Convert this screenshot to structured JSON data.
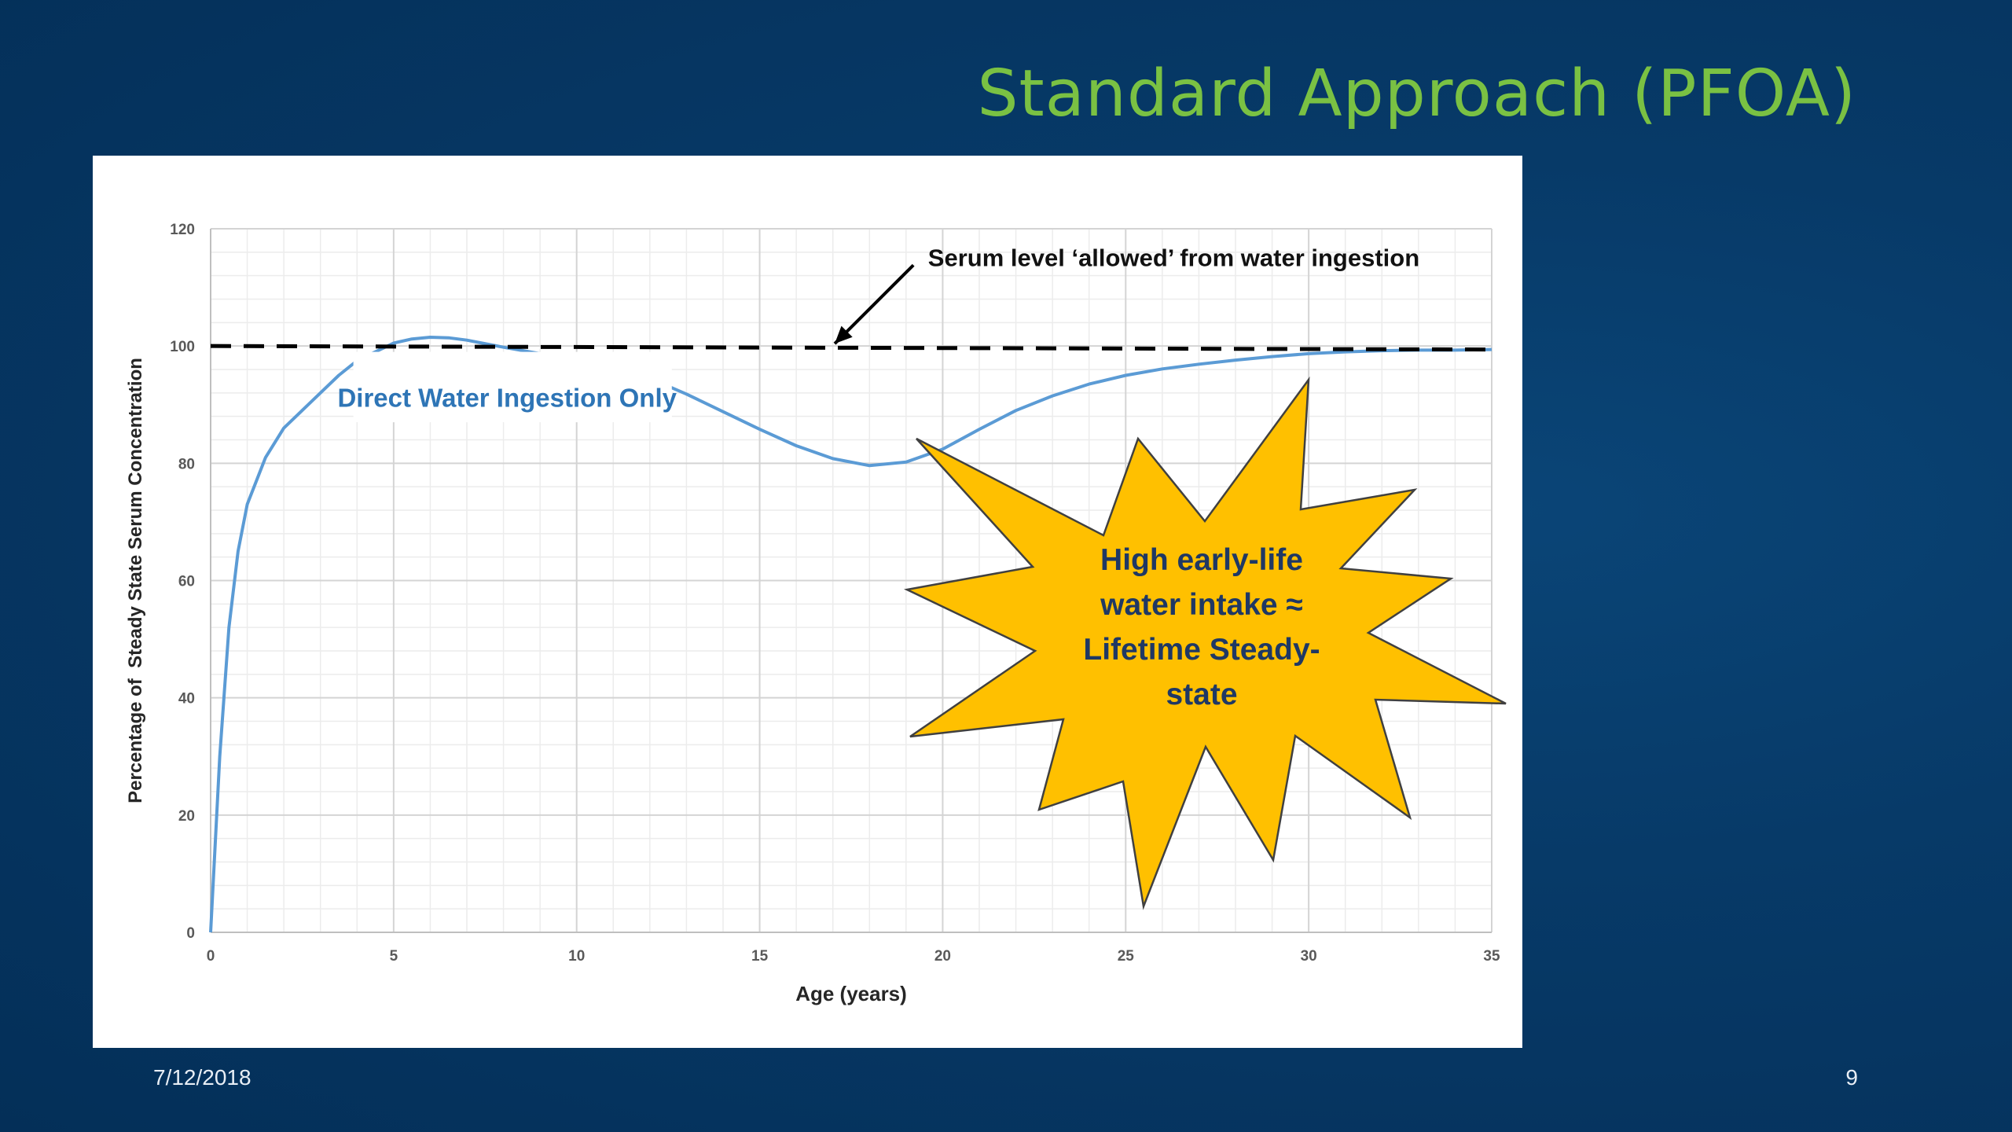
{
  "slide": {
    "title": "Standard Approach (PFOA)",
    "date": "7/12/2018",
    "page_number": "9"
  },
  "colors": {
    "title": "#7ac143",
    "curve": "#5b9bd5",
    "series_label": "#2e75b6",
    "burst_fill": "#ffc000",
    "burst_text": "#1f3864",
    "reference_line": "#000000"
  },
  "chart_data": {
    "type": "line",
    "xlabel": "Age (years)",
    "ylabel": "Percentage of  Steady State Serum Concentration",
    "xlim": [
      0,
      35
    ],
    "ylim": [
      0,
      120
    ],
    "xticks": [
      0,
      5,
      10,
      15,
      20,
      25,
      30,
      35
    ],
    "yticks": [
      0,
      20,
      40,
      60,
      80,
      100,
      120
    ],
    "grid": true,
    "series": [
      {
        "name": "Direct Water Ingestion Only",
        "x": [
          0,
          0.25,
          0.5,
          0.75,
          1,
          1.5,
          2,
          2.5,
          3,
          3.5,
          4,
          4.5,
          5,
          5.5,
          6,
          6.5,
          7,
          8,
          9,
          10,
          11,
          12,
          13,
          14,
          15,
          16,
          17,
          18,
          19,
          20,
          21,
          22,
          23,
          24,
          25,
          26,
          27,
          28,
          29,
          30,
          31,
          32,
          33,
          34,
          35
        ],
        "y": [
          0,
          30,
          52,
          65,
          73,
          81,
          86,
          89,
          92,
          95,
          97.5,
          99,
          100.5,
          101.2,
          101.5,
          101.4,
          101,
          99.8,
          98.7,
          97.7,
          96.4,
          94.5,
          91.8,
          88.8,
          85.8,
          83,
          80.8,
          79.6,
          80.2,
          82.4,
          85.8,
          89,
          91.5,
          93.5,
          95,
          96.1,
          96.9,
          97.6,
          98.2,
          98.7,
          99,
          99.2,
          99.3,
          99.3,
          99.4
        ]
      },
      {
        "name": "",
        "style": "dashed",
        "x": [
          0,
          35
        ],
        "y": [
          100,
          99.4
        ]
      }
    ],
    "annotations": {
      "reference_label": "Serum level ‘allowed’ from water ingestion",
      "series_label": "Direct Water Ingestion Only",
      "callout_lines": [
        "High early-life",
        "water intake ≈",
        "Lifetime Steady-",
        "state"
      ]
    }
  }
}
